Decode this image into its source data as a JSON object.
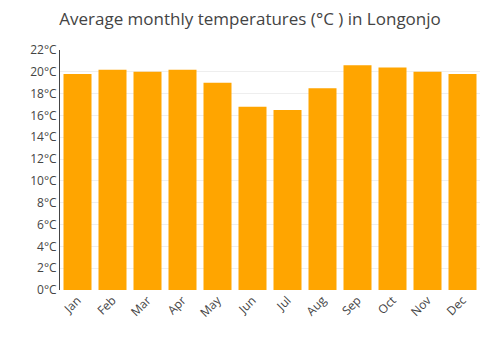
{
  "chart_data": {
    "type": "bar",
    "title": "Average monthly temperatures (°C ) in Longonjo",
    "categories": [
      "Jan",
      "Feb",
      "Mar",
      "Apr",
      "May",
      "Jun",
      "Jul",
      "Aug",
      "Sep",
      "Oct",
      "Nov",
      "Dec"
    ],
    "values": [
      19.8,
      20.2,
      20.0,
      20.2,
      19.0,
      16.8,
      16.5,
      18.5,
      20.6,
      20.4,
      20.0,
      19.8
    ],
    "color": "#FFA500",
    "ylim": [
      0,
      22
    ],
    "yticks": [
      {
        "value": 0,
        "label": "0°C"
      },
      {
        "value": 2,
        "label": "2°C"
      },
      {
        "value": 4,
        "label": "4°C"
      },
      {
        "value": 6,
        "label": "6°C"
      },
      {
        "value": 8,
        "label": "8°C"
      },
      {
        "value": 10,
        "label": "10°C"
      },
      {
        "value": 12,
        "label": "12°C"
      },
      {
        "value": 14,
        "label": "14°C"
      },
      {
        "value": 16,
        "label": "16°C"
      },
      {
        "value": 18,
        "label": "18°C"
      },
      {
        "value": 20,
        "label": "20°C"
      },
      {
        "value": 22,
        "label": "22°C"
      }
    ],
    "grid": true
  }
}
